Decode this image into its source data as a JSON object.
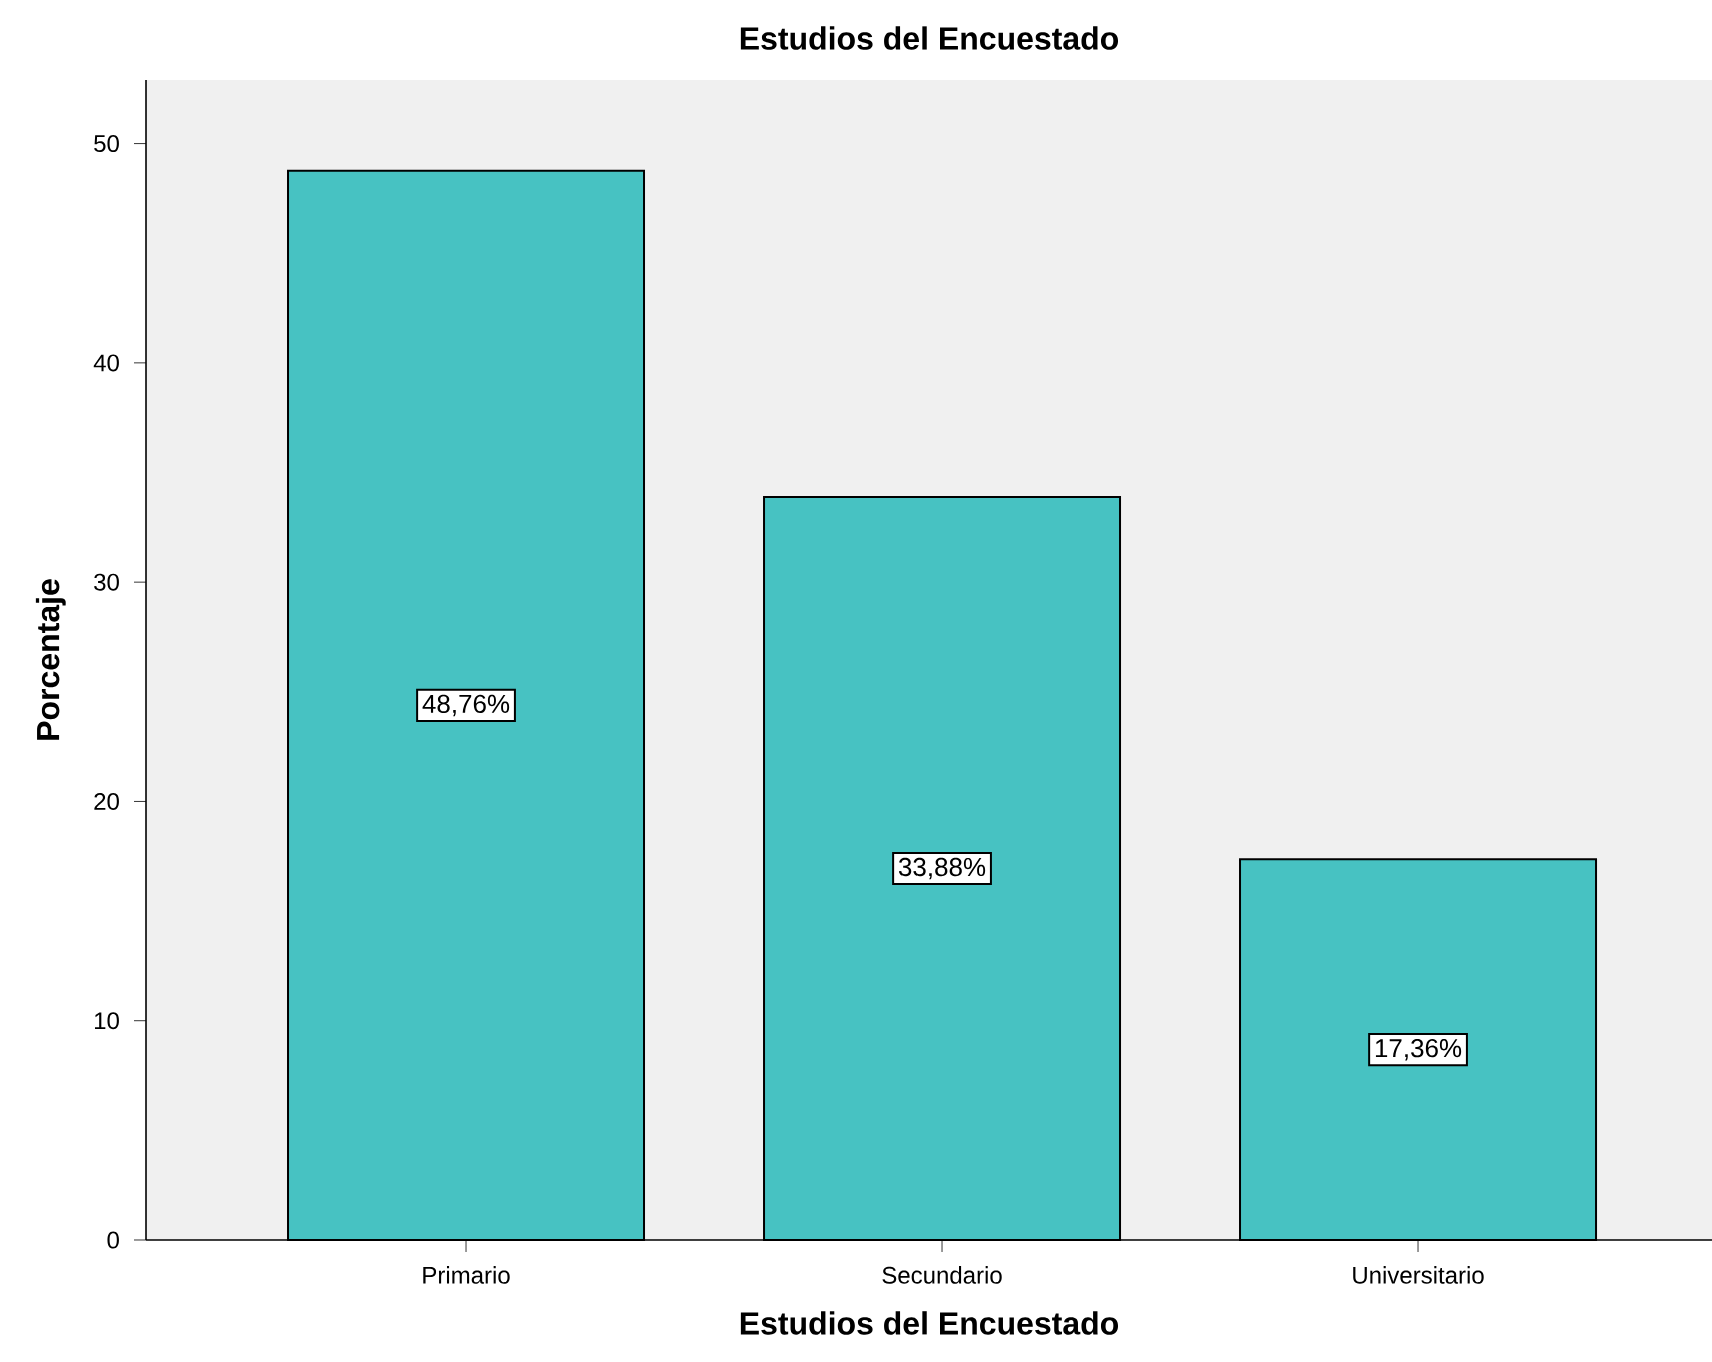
{
  "chart_data": {
    "type": "bar",
    "title": "Estudios del Encuestado",
    "xlabel": "Estudios del Encuestado",
    "ylabel": "Porcentaje",
    "categories": [
      "Primario",
      "Secundario",
      "Universitario"
    ],
    "values": [
      48.76,
      33.88,
      17.36
    ],
    "value_labels": [
      "48,76%",
      "33,88%",
      "17,36%"
    ],
    "color": "#47c2c2",
    "ylim": [
      0,
      52.9
    ],
    "yticks": [
      0,
      10,
      20,
      30,
      40,
      50
    ]
  }
}
